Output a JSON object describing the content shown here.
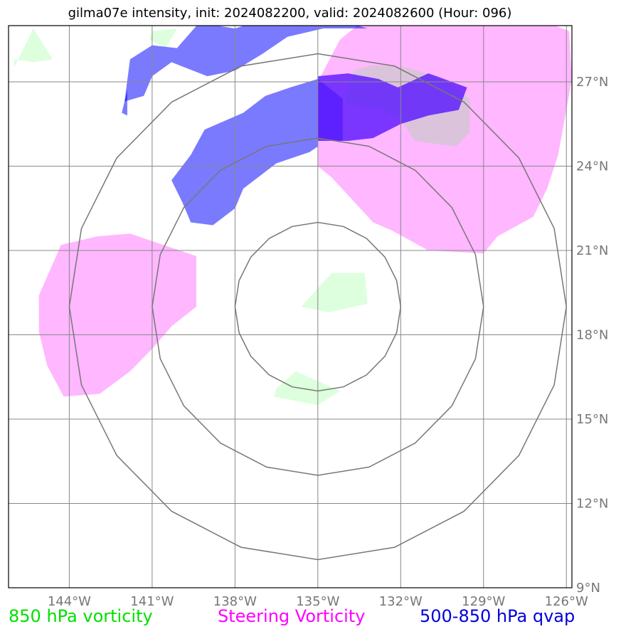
{
  "title": "gilma07e intensity, init: 2024082200, valid: 2024082600 (Hour: 096)",
  "map": {
    "projection": "plate-carree",
    "lon_range": [
      -146.2,
      -125.8
    ],
    "lat_range": [
      9,
      29
    ],
    "center": {
      "lon": -135,
      "lat": 19
    },
    "range_ring_radii_deg": [
      3,
      6,
      9
    ],
    "gridlines": true
  },
  "lon_ticks": [
    {
      "value": -144,
      "label": "144°W"
    },
    {
      "value": -141,
      "label": "141°W"
    },
    {
      "value": -138,
      "label": "138°W"
    },
    {
      "value": -135,
      "label": "135°W"
    },
    {
      "value": -132,
      "label": "132°W"
    },
    {
      "value": -129,
      "label": "129°W"
    },
    {
      "value": -126,
      "label": "126°W"
    }
  ],
  "lat_ticks": [
    {
      "value": 27,
      "label": "27°N"
    },
    {
      "value": 24,
      "label": "24°N"
    },
    {
      "value": 21,
      "label": "21°N"
    },
    {
      "value": 18,
      "label": "18°N"
    },
    {
      "value": 15,
      "label": "15°N"
    },
    {
      "value": 12,
      "label": "12°N"
    },
    {
      "value": 9,
      "label": "9°N"
    }
  ],
  "legend": {
    "vorticity": "850 hPa vorticity",
    "steering": "Steering Vorticity",
    "qvap": "500-850 hPa qvap"
  },
  "colors": {
    "vorticity": "#00ff00",
    "steering": "#ff00ff",
    "qvap": "#0000ff",
    "vorticity_fill": "#ccffcc",
    "steering_fill": "#ff80ff",
    "qvap_fill": "#3333ff",
    "qvap_dense_fill": "#5511ff"
  },
  "regions": {
    "vorticity_850": [
      [
        [
          -146,
          27.5
        ],
        [
          -145.3,
          28.9
        ],
        [
          -144.6,
          27.8
        ],
        [
          -145.3,
          27.7
        ],
        [
          -146,
          27.8
        ]
      ],
      [
        [
          -141,
          28.8
        ],
        [
          -140.1,
          28.9
        ],
        [
          -140.5,
          28.2
        ],
        [
          -141.1,
          28.5
        ]
      ],
      [
        [
          -134.5,
          20.2
        ],
        [
          -133.3,
          20.2
        ],
        [
          -133.2,
          19.1
        ],
        [
          -134.6,
          18.8
        ],
        [
          -135.6,
          19.0
        ]
      ],
      [
        [
          -136.5,
          16.1
        ],
        [
          -135.8,
          16.7
        ],
        [
          -134.2,
          16.0
        ],
        [
          -135.0,
          15.5
        ],
        [
          -136.6,
          15.8
        ]
      ]
    ],
    "steering_vorticity": [
      [
        [
          -145.1,
          19.4
        ],
        [
          -144.3,
          21.2
        ],
        [
          -143.0,
          21.5
        ],
        [
          -141.8,
          21.6
        ],
        [
          -140.9,
          21.3
        ],
        [
          -139.4,
          20.8
        ],
        [
          -139.4,
          19.0
        ],
        [
          -140.3,
          18.3
        ],
        [
          -141.0,
          17.5
        ],
        [
          -141.8,
          16.7
        ],
        [
          -142.9,
          15.9
        ],
        [
          -144.2,
          15.8
        ],
        [
          -144.8,
          16.9
        ],
        [
          -145.1,
          18.1
        ]
      ],
      [
        [
          -135.0,
          27.0
        ],
        [
          -134.2,
          28.5
        ],
        [
          -133.2,
          29.3
        ],
        [
          -130.0,
          29.2
        ],
        [
          -126.9,
          29.2
        ],
        [
          -125.9,
          28.8
        ],
        [
          -125.8,
          27.1
        ],
        [
          -126.3,
          24.4
        ],
        [
          -126.7,
          23.2
        ],
        [
          -127.2,
          22.2
        ],
        [
          -128.5,
          21.5
        ],
        [
          -129.0,
          20.9
        ],
        [
          -131.0,
          21.0
        ],
        [
          -132.3,
          21.7
        ],
        [
          -133.0,
          22.0
        ],
        [
          -134.5,
          23.6
        ],
        [
          -135.0,
          24.0
        ]
      ]
    ],
    "steering_overlap": [
      [
        [
          -133.7,
          27.4
        ],
        [
          -133.0,
          27.6
        ],
        [
          -131.7,
          27.5
        ],
        [
          -130.5,
          27.1
        ],
        [
          -129.5,
          26.4
        ],
        [
          -129.5,
          25.2
        ],
        [
          -130.0,
          24.7
        ],
        [
          -131.5,
          24.9
        ],
        [
          -132.0,
          25.7
        ],
        [
          -133.0,
          26.1
        ],
        [
          -134.0,
          26.2
        ]
      ]
    ],
    "qvap": [
      [
        [
          -142.0,
          26.3
        ],
        [
          -141.8,
          27.8
        ],
        [
          -141.0,
          28.3
        ],
        [
          -140.1,
          28.2
        ],
        [
          -139.3,
          29.1
        ],
        [
          -138.0,
          28.9
        ],
        [
          -136.4,
          29.4
        ],
        [
          -134.2,
          29.2
        ],
        [
          -133.2,
          28.9
        ],
        [
          -134.8,
          28.9
        ],
        [
          -136.1,
          28.6
        ],
        [
          -137.0,
          28.0
        ],
        [
          -138.0,
          27.4
        ],
        [
          -139.0,
          27.2
        ],
        [
          -140.3,
          27.7
        ],
        [
          -141.0,
          27.2
        ],
        [
          -141.3,
          26.5
        ]
      ],
      [
        [
          -142.1,
          25.9
        ],
        [
          -141.9,
          26.7
        ],
        [
          -141.9,
          25.8
        ]
      ],
      [
        [
          -139.9,
          22.7
        ],
        [
          -139.6,
          22.0
        ],
        [
          -138.8,
          21.9
        ],
        [
          -138.0,
          22.5
        ],
        [
          -137.7,
          23.2
        ],
        [
          -136.5,
          24.1
        ],
        [
          -135.3,
          24.5
        ],
        [
          -135.0,
          24.7
        ],
        [
          -135.0,
          25.0
        ],
        [
          -134.1,
          24.9
        ],
        [
          -134.1,
          26.4
        ],
        [
          -135.0,
          27.1
        ],
        [
          -136.0,
          26.8
        ],
        [
          -136.9,
          26.5
        ],
        [
          -137.7,
          25.9
        ],
        [
          -139.1,
          25.3
        ],
        [
          -139.6,
          24.4
        ],
        [
          -140.3,
          23.5
        ]
      ]
    ],
    "qvap_dense": [
      [
        [
          -135.0,
          27.2
        ],
        [
          -133.9,
          27.3
        ],
        [
          -132.8,
          27.1
        ],
        [
          -132.1,
          26.8
        ],
        [
          -131.0,
          27.3
        ],
        [
          -130.7,
          27.2
        ],
        [
          -129.6,
          26.8
        ],
        [
          -129.9,
          26.0
        ],
        [
          -131.0,
          25.8
        ],
        [
          -132.0,
          25.5
        ],
        [
          -133.0,
          25.0
        ],
        [
          -133.9,
          24.9
        ],
        [
          -135.0,
          24.9
        ]
      ]
    ]
  }
}
